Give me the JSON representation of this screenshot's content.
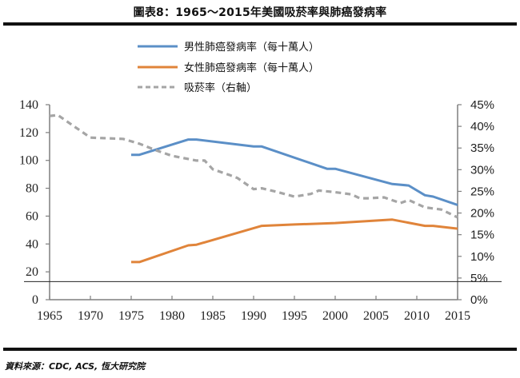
{
  "header": {
    "title": "圖表8：1965～2015年美國吸菸率與肺癌發病率"
  },
  "footer": {
    "source": "資料來源：CDC, ACS, 恆大研究院"
  },
  "chart_data": {
    "type": "line",
    "title": "圖表8：1965～2015年美國吸菸率與肺癌發病率",
    "xlabel": "",
    "ylabel": "",
    "y2label": "",
    "xlim": [
      1965,
      2015
    ],
    "ylim": [
      0,
      140
    ],
    "y2lim": [
      0,
      45
    ],
    "x_ticks": [
      "1965",
      "1970",
      "1975",
      "1980",
      "1985",
      "1990",
      "1995",
      "2000",
      "2005",
      "2010",
      "2015"
    ],
    "y_ticks": [
      "0",
      "20",
      "40",
      "60",
      "80",
      "100",
      "120",
      "140"
    ],
    "y2_ticks": [
      "0%",
      "5%",
      "10%",
      "15%",
      "20%",
      "25%",
      "30%",
      "35%",
      "40%",
      "45%"
    ],
    "reference_line_y": 13,
    "grid": false,
    "legend_position": "top",
    "series": [
      {
        "name": "男性肺癌發病率（每十萬人）",
        "axis": "left",
        "color": "#5b8fc7",
        "style": "solid",
        "points": [
          [
            1975,
            104
          ],
          [
            1976,
            104
          ],
          [
            1982,
            115
          ],
          [
            1983,
            115
          ],
          [
            1990,
            110
          ],
          [
            1991,
            110
          ],
          [
            1999,
            94
          ],
          [
            2000,
            94
          ],
          [
            2007,
            83
          ],
          [
            2009,
            82
          ],
          [
            2011,
            75
          ],
          [
            2012,
            74
          ],
          [
            2015,
            68
          ]
        ]
      },
      {
        "name": "女性肺癌發病率（每十萬人）",
        "axis": "left",
        "color": "#e0843a",
        "style": "solid",
        "points": [
          [
            1975,
            27
          ],
          [
            1976,
            27
          ],
          [
            1982,
            39
          ],
          [
            1983,
            39.5
          ],
          [
            1991,
            53
          ],
          [
            1995,
            54
          ],
          [
            2000,
            55
          ],
          [
            2007,
            57.5
          ],
          [
            2011,
            53
          ],
          [
            2012,
            53
          ],
          [
            2015,
            51
          ]
        ]
      },
      {
        "name": "吸菸率（右軸）",
        "axis": "right",
        "color": "#a5a5a5",
        "style": "dashed",
        "points": [
          [
            1965,
            42.4
          ],
          [
            1966,
            42.6
          ],
          [
            1970,
            37.4
          ],
          [
            1974,
            37.1
          ],
          [
            1976,
            36
          ],
          [
            1978,
            34.5
          ],
          [
            1980,
            33.2
          ],
          [
            1983,
            32.1
          ],
          [
            1984,
            32.1
          ],
          [
            1985,
            30.1
          ],
          [
            1987,
            28.8
          ],
          [
            1988,
            28.1
          ],
          [
            1990,
            25.5
          ],
          [
            1991,
            25.7
          ],
          [
            1993,
            24.8
          ],
          [
            1995,
            23.8
          ],
          [
            1997,
            24.4
          ],
          [
            1998,
            25.2
          ],
          [
            2000,
            24.8
          ],
          [
            2002,
            24.3
          ],
          [
            2003,
            23.4
          ],
          [
            2004,
            23.4
          ],
          [
            2006,
            23.6
          ],
          [
            2008,
            22.3
          ],
          [
            2009,
            23
          ],
          [
            2011,
            21.3
          ],
          [
            2013,
            20.8
          ],
          [
            2015,
            19
          ]
        ]
      }
    ]
  }
}
